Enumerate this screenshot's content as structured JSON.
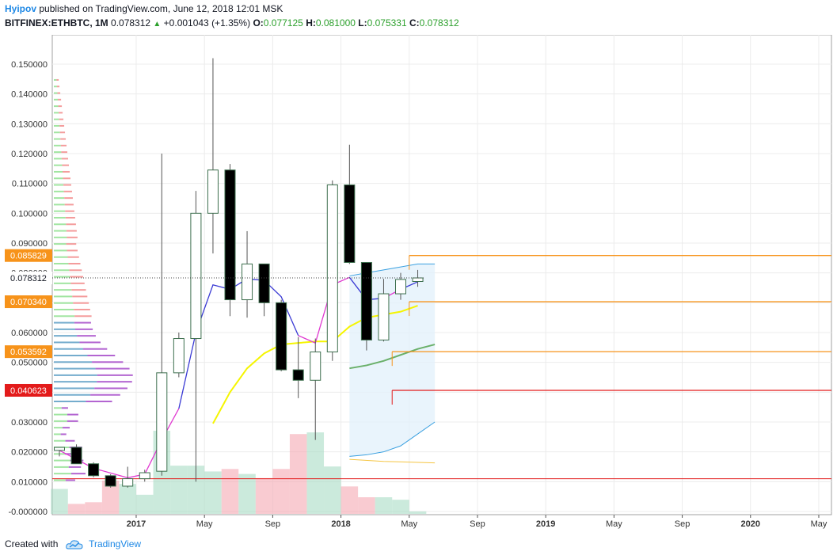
{
  "header": {
    "author": "Hyipov",
    "published_text": "published on TradingView.com, June 12, 2018 12:01 MSK",
    "symbol": "BITFINEX:ETHBTC, 1M",
    "last": "0.078312",
    "change": "+0.001043 (+1.35%)",
    "o_label": "O:",
    "o_value": "0.077125",
    "h_label": "H:",
    "h_value": "0.081000",
    "l_label": "L:",
    "l_value": "0.075331",
    "c_label": "C:",
    "c_value": "0.078312",
    "up_icon": "triangle-up-icon"
  },
  "footer": {
    "created_with": "Created with",
    "brand": "TradingView",
    "logo_icon": "tradingview-cloud-icon"
  },
  "chart_data": {
    "type": "candlestick",
    "ylim": [
      0.0,
      0.153
    ],
    "ytick_values": [
      0.0,
      0.01,
      0.02,
      0.03,
      0.04,
      0.05,
      0.06,
      0.07,
      0.08,
      0.09,
      0.1,
      0.11,
      0.12,
      0.13,
      0.14,
      0.15
    ],
    "ytick_labels": [
      "-0.000000",
      "0.010000",
      "0.020000",
      "0.030000",
      "0.040000",
      "0.050000",
      "0.060000",
      "0.070000",
      "0.080000",
      "0.090000",
      "0.100000",
      "0.110000",
      "0.120000",
      "0.130000",
      "0.140000",
      "0.150000"
    ],
    "xlim": [
      0,
      46
    ],
    "x_labels": [
      {
        "m": 4.5,
        "label": "2017"
      },
      {
        "m": 8.5,
        "label": "May"
      },
      {
        "m": 12.5,
        "label": "Sep"
      },
      {
        "m": 16.5,
        "label": "2018"
      },
      {
        "m": 20.5,
        "label": "May"
      },
      {
        "m": 24.5,
        "label": "Sep"
      },
      {
        "m": 28.5,
        "label": "2019"
      },
      {
        "m": 32.5,
        "label": "May"
      },
      {
        "m": 36.5,
        "label": "Sep"
      },
      {
        "m": 40.5,
        "label": "2020"
      },
      {
        "m": 44.5,
        "label": "May"
      }
    ],
    "candles": [
      {
        "o": 0.0205,
        "h": 0.0215,
        "l": 0.0185,
        "c": 0.0215
      },
      {
        "o": 0.0215,
        "h": 0.0225,
        "l": 0.0165,
        "c": 0.016
      },
      {
        "o": 0.016,
        "h": 0.0165,
        "l": 0.0115,
        "c": 0.012
      },
      {
        "o": 0.012,
        "h": 0.0125,
        "l": 0.008,
        "c": 0.0085
      },
      {
        "o": 0.0085,
        "h": 0.015,
        "l": 0.008,
        "c": 0.011
      },
      {
        "o": 0.011,
        "h": 0.014,
        "l": 0.01,
        "c": 0.013
      },
      {
        "o": 0.0135,
        "h": 0.12,
        "l": 0.012,
        "c": 0.0465
      },
      {
        "o": 0.0465,
        "h": 0.06,
        "l": 0.045,
        "c": 0.058
      },
      {
        "o": 0.058,
        "h": 0.1075,
        "l": 0.01,
        "c": 0.1
      },
      {
        "o": 0.1,
        "h": 0.152,
        "l": 0.0865,
        "c": 0.1145
      },
      {
        "o": 0.1145,
        "h": 0.1165,
        "l": 0.0655,
        "c": 0.071
      },
      {
        "o": 0.071,
        "h": 0.094,
        "l": 0.065,
        "c": 0.083
      },
      {
        "o": 0.083,
        "h": 0.083,
        "l": 0.0655,
        "c": 0.07
      },
      {
        "o": 0.07,
        "h": 0.071,
        "l": 0.047,
        "c": 0.0475
      },
      {
        "o": 0.0475,
        "h": 0.0585,
        "l": 0.038,
        "c": 0.044
      },
      {
        "o": 0.044,
        "h": 0.058,
        "l": 0.024,
        "c": 0.0535
      },
      {
        "o": 0.0535,
        "h": 0.111,
        "l": 0.0505,
        "c": 0.1095
      },
      {
        "o": 0.1095,
        "h": 0.123,
        "l": 0.083,
        "c": 0.0835
      },
      {
        "o": 0.0835,
        "h": 0.0835,
        "l": 0.054,
        "c": 0.0575
      },
      {
        "o": 0.0575,
        "h": 0.078,
        "l": 0.057,
        "c": 0.073
      },
      {
        "o": 0.073,
        "h": 0.08,
        "l": 0.071,
        "c": 0.0778
      },
      {
        "o": 0.077125,
        "h": 0.081,
        "l": 0.075331,
        "c": 0.078312
      }
    ],
    "volume_units": "relative (0-1 of panel height)",
    "volume": [
      {
        "v": 0.3,
        "up": true
      },
      {
        "v": 0.12,
        "up": false
      },
      {
        "v": 0.14,
        "up": false
      },
      {
        "v": 0.4,
        "up": false
      },
      {
        "v": 0.36,
        "up": true
      },
      {
        "v": 0.23,
        "up": true
      },
      {
        "v": 1.0,
        "up": true
      },
      {
        "v": 0.58,
        "up": true
      },
      {
        "v": 0.58,
        "up": true
      },
      {
        "v": 0.51,
        "up": true
      },
      {
        "v": 0.54,
        "up": false
      },
      {
        "v": 0.48,
        "up": true
      },
      {
        "v": 0.43,
        "up": false
      },
      {
        "v": 0.54,
        "up": false
      },
      {
        "v": 0.96,
        "up": false
      },
      {
        "v": 0.98,
        "up": true
      },
      {
        "v": 0.57,
        "up": true
      },
      {
        "v": 0.33,
        "up": false
      },
      {
        "v": 0.2,
        "up": false
      },
      {
        "v": 0.2,
        "up": true
      },
      {
        "v": 0.17,
        "up": true
      },
      {
        "v": 0.03,
        "up": true
      }
    ],
    "ma_magenta": [
      [
        0,
        0.0205
      ],
      [
        2,
        0.0145
      ],
      [
        4,
        0.0113
      ],
      [
        5,
        0.0125
      ],
      [
        6,
        0.024
      ],
      [
        7,
        0.0345
      ],
      [
        8,
        0.06
      ],
      [
        9,
        0.076
      ],
      [
        10,
        0.0745
      ],
      [
        11,
        0.078
      ],
      [
        12,
        0.0775
      ],
      [
        13,
        0.072
      ],
      [
        14,
        0.059
      ],
      [
        15,
        0.0565
      ],
      [
        16,
        0.076
      ],
      [
        17,
        0.0785
      ],
      [
        18,
        0.071
      ],
      [
        19,
        0.0715
      ],
      [
        20,
        0.0745
      ],
      [
        21,
        0.077
      ]
    ],
    "ma_blue": [
      [
        0,
        0.0205
      ],
      [
        2,
        0.0145
      ],
      [
        4,
        0.0113
      ],
      [
        5,
        0.0125
      ],
      [
        6,
        0.024
      ],
      [
        7,
        0.0345
      ],
      [
        8,
        0.06
      ],
      [
        9,
        0.076
      ],
      [
        10,
        0.0745
      ],
      [
        11,
        0.078
      ],
      [
        12,
        0.0775
      ],
      [
        13,
        0.072
      ],
      [
        14,
        0.059
      ],
      [
        15,
        0.0565
      ],
      [
        16,
        0.076
      ],
      [
        17,
        0.0785
      ],
      [
        18,
        0.071
      ],
      [
        19,
        0.0715
      ],
      [
        20,
        0.0745
      ],
      [
        21,
        0.077
      ]
    ],
    "ma_yellow": [
      [
        9,
        0.0295
      ],
      [
        10,
        0.04
      ],
      [
        11,
        0.048
      ],
      [
        12,
        0.053
      ],
      [
        13,
        0.056
      ],
      [
        14,
        0.0565
      ],
      [
        15,
        0.057
      ],
      [
        16,
        0.057
      ],
      [
        17,
        0.062
      ],
      [
        18,
        0.065
      ],
      [
        19,
        0.066
      ],
      [
        20,
        0.067
      ],
      [
        21,
        0.069
      ]
    ],
    "ma_green": [
      [
        17,
        0.048
      ],
      [
        18,
        0.049
      ],
      [
        19,
        0.0505
      ],
      [
        20,
        0.0525
      ],
      [
        21,
        0.0545
      ],
      [
        22,
        0.056
      ]
    ],
    "projection_band": {
      "x": [
        17,
        18,
        19,
        20,
        21,
        22
      ],
      "upper": [
        0.079,
        0.08,
        0.081,
        0.082,
        0.083,
        0.083
      ],
      "lower": [
        0.0185,
        0.019,
        0.02,
        0.022,
        0.026,
        0.03
      ]
    },
    "price_labels": [
      {
        "value": 0.085829,
        "text": "0.085829",
        "color": "#f7931a",
        "line_color": "#f7931a",
        "line_from": 20.5,
        "style": "tag"
      },
      {
        "value": 0.078312,
        "text": "0.078312",
        "color": "#ffffff",
        "line_color": "#000000",
        "line_from": null,
        "style": "plain"
      },
      {
        "value": 0.07034,
        "text": "0.070340",
        "color": "#f7931a",
        "line_color": "#f7931a",
        "line_from": 20.5,
        "style": "tag"
      },
      {
        "value": 0.053592,
        "text": "0.053592",
        "color": "#f7931a",
        "line_color": "#f7931a",
        "line_from": 19.5,
        "style": "tag"
      },
      {
        "value": 0.040623,
        "text": "0.040623",
        "color": "#e31b1b",
        "line_color": "#e31b1b",
        "line_from": 19.5,
        "style": "tag"
      }
    ],
    "hline_red": 0.011,
    "colors": {
      "up_candle": "#ffffff",
      "down_candle": "#000000",
      "candle_border": "#3c6e4d",
      "vol_up": "#a8dcc4",
      "vol_down": "#f5a9b3",
      "ma_magenta": "#e03ad1",
      "ma_blue": "#3a3ad4",
      "ma_yellow": "#f5f500",
      "ma_green": "#6ab06a",
      "band_fill": "#e3f1fb",
      "band_line": "#3aa0e0",
      "vp_up": "#90e090",
      "vp_down": "#f28b8b",
      "vp_purple": "#a64ac9"
    }
  }
}
